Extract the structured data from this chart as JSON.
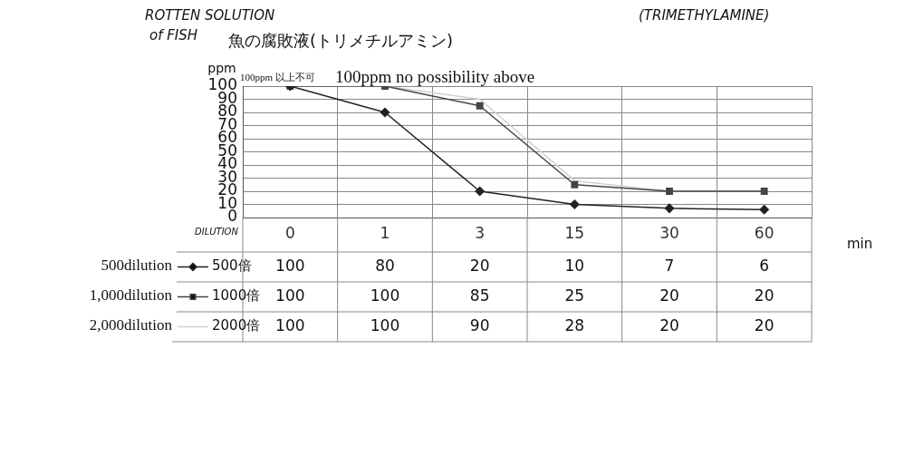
{
  "chart_data": {
    "type": "line",
    "title": "魚の腐敗液(トリメチルアミン)",
    "ylabel": "ppm",
    "xlabel": "min",
    "legend_title": "DILUTION",
    "annotations": [
      "ROTTEN SOLUTION",
      "of FISH",
      "(TRIMETHYLAMINE)",
      "100ppm 以上不可",
      "100ppm no possibility above",
      "500dilution",
      "1,000dilution",
      "2,000dilution"
    ],
    "categories": [
      "0",
      "1",
      "3",
      "15",
      "30",
      "60"
    ],
    "series": [
      {
        "name": "500倍",
        "color": "#222222",
        "marker": "diamond",
        "values": [
          100,
          80,
          20,
          10,
          7,
          6
        ]
      },
      {
        "name": "1000倍",
        "color": "#444444",
        "marker": "square",
        "values": [
          100,
          100,
          85,
          25,
          20,
          20
        ]
      },
      {
        "name": "2000倍",
        "color": "#d0d0d0",
        "marker": "none",
        "values": [
          100,
          100,
          90,
          28,
          20,
          20
        ]
      }
    ],
    "ylim": [
      0,
      100
    ],
    "yticks": [
      0,
      10,
      20,
      30,
      40,
      50,
      60,
      70,
      80,
      90,
      100
    ],
    "grid": true,
    "data_labels": true,
    "legend": "bottom left"
  }
}
